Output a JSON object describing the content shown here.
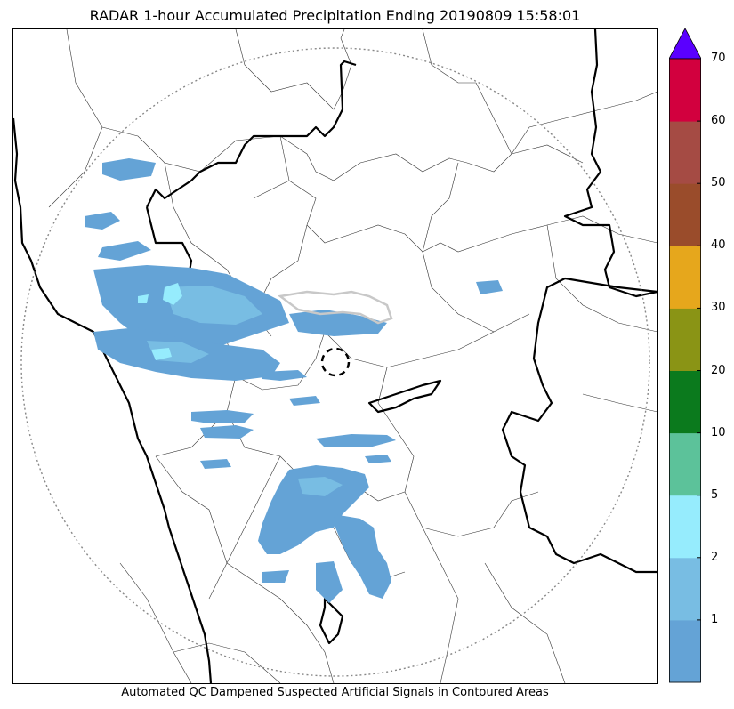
{
  "title": "RADAR 1-hour Accumulated Precipitation Ending 20190809 15:58:01",
  "footer_note": "Automated QC Dampened Suspected Artificial Signals in Contoured Areas",
  "colorbar": {
    "extend_color": "#5a00ff",
    "bins": [
      {
        "color": "#64a3d6"
      },
      {
        "color": "#78bde3"
      },
      {
        "color": "#96ecfd"
      },
      {
        "color": "#5cc29a"
      },
      {
        "color": "#0b7a1d"
      },
      {
        "color": "#8a9415"
      },
      {
        "color": "#e6a71c"
      },
      {
        "color": "#9a4c2b"
      },
      {
        "color": "#a54b44"
      },
      {
        "color": "#d2003e"
      }
    ],
    "tick_labels": [
      "1",
      "2",
      "5",
      "10",
      "20",
      "30",
      "40",
      "50",
      "60",
      "70"
    ]
  },
  "map": {
    "range_ring": "dotted",
    "radar_site_marker": "dashed-circle",
    "colors": {
      "light_rain": "#64a3d6",
      "moderate_rain": "#78bde3",
      "heavier_rain": "#96ecfd",
      "qc_contour": "#c8c8c8",
      "border": "#000000"
    }
  }
}
